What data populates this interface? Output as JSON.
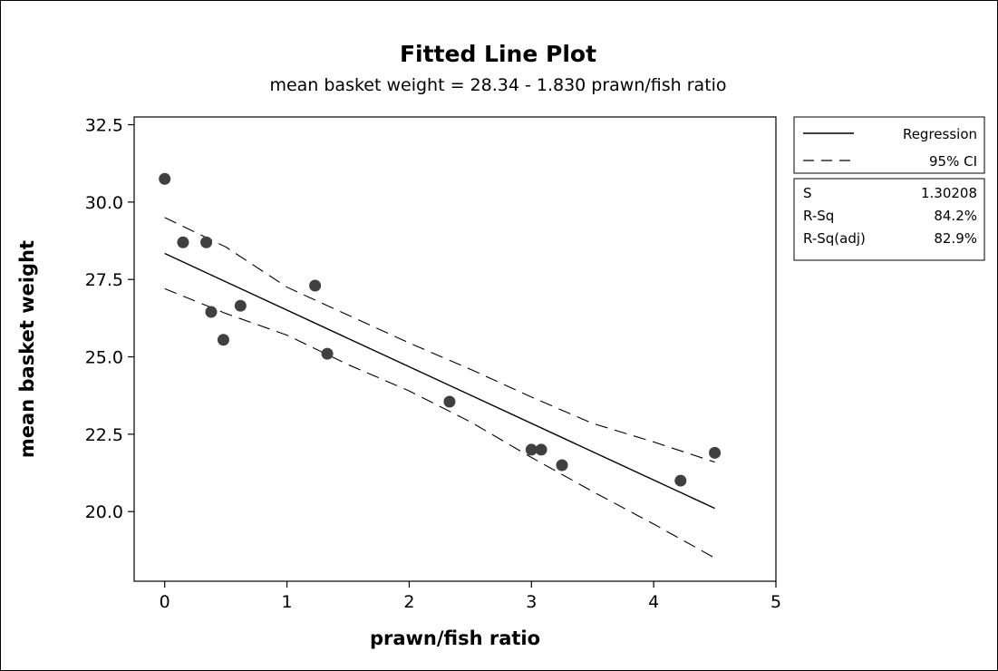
{
  "chart_data": {
    "type": "scatter",
    "title": "Fitted Line Plot",
    "subtitle": "mean basket weight =  28.34 - 1.830 prawn/fish ratio",
    "xlabel": "prawn/fish ratio",
    "ylabel": "mean basket weight",
    "xlim": [
      -0.25,
      5.0
    ],
    "ylim": [
      17.75,
      32.75
    ],
    "xticks": [
      0,
      1,
      2,
      3,
      4,
      5
    ],
    "xtick_labels": [
      "0",
      "1",
      "2",
      "3",
      "4",
      "5"
    ],
    "yticks": [
      20.0,
      22.5,
      25.0,
      27.5,
      30.0,
      32.5
    ],
    "ytick_labels": [
      "20.0",
      "22.5",
      "25.0",
      "27.5",
      "30.0",
      "32.5"
    ],
    "grid": false,
    "points": {
      "x": [
        0.0,
        0.15,
        0.34,
        0.38,
        0.48,
        0.62,
        1.23,
        1.33,
        2.33,
        3.0,
        3.08,
        3.25,
        4.22,
        4.5
      ],
      "y": [
        30.75,
        28.7,
        28.7,
        26.45,
        25.55,
        26.65,
        27.3,
        25.1,
        23.55,
        22.0,
        22.0,
        21.5,
        21.0,
        21.9
      ],
      "color": "#404040"
    },
    "regression": {
      "name": "Regression",
      "intercept": 28.34,
      "slope": -1.83,
      "x_range": [
        0.0,
        4.5
      ]
    },
    "ci": {
      "name": "95% CI",
      "upper": {
        "x": [
          0.0,
          0.5,
          1.0,
          1.5,
          2.0,
          2.5,
          3.0,
          3.5,
          4.0,
          4.5
        ],
        "y": [
          29.5,
          28.55,
          27.25,
          26.35,
          25.45,
          24.6,
          23.7,
          22.85,
          22.25,
          21.6
        ]
      },
      "lower": {
        "x": [
          0.0,
          0.5,
          1.0,
          1.5,
          2.0,
          2.5,
          3.0,
          3.5,
          4.0,
          4.5
        ],
        "y": [
          27.2,
          26.4,
          25.7,
          24.75,
          23.9,
          22.9,
          21.75,
          20.65,
          19.6,
          18.5
        ]
      }
    },
    "legend": {
      "placement": "right",
      "entries": [
        {
          "label": "Regression",
          "style": "solid"
        },
        {
          "label": "95% CI",
          "style": "dashed"
        }
      ]
    },
    "stats": [
      {
        "label": "S",
        "value": "1.30208"
      },
      {
        "label": "R-Sq",
        "value": "84.2%"
      },
      {
        "label": "R-Sq(adj)",
        "value": "82.9%"
      }
    ]
  }
}
